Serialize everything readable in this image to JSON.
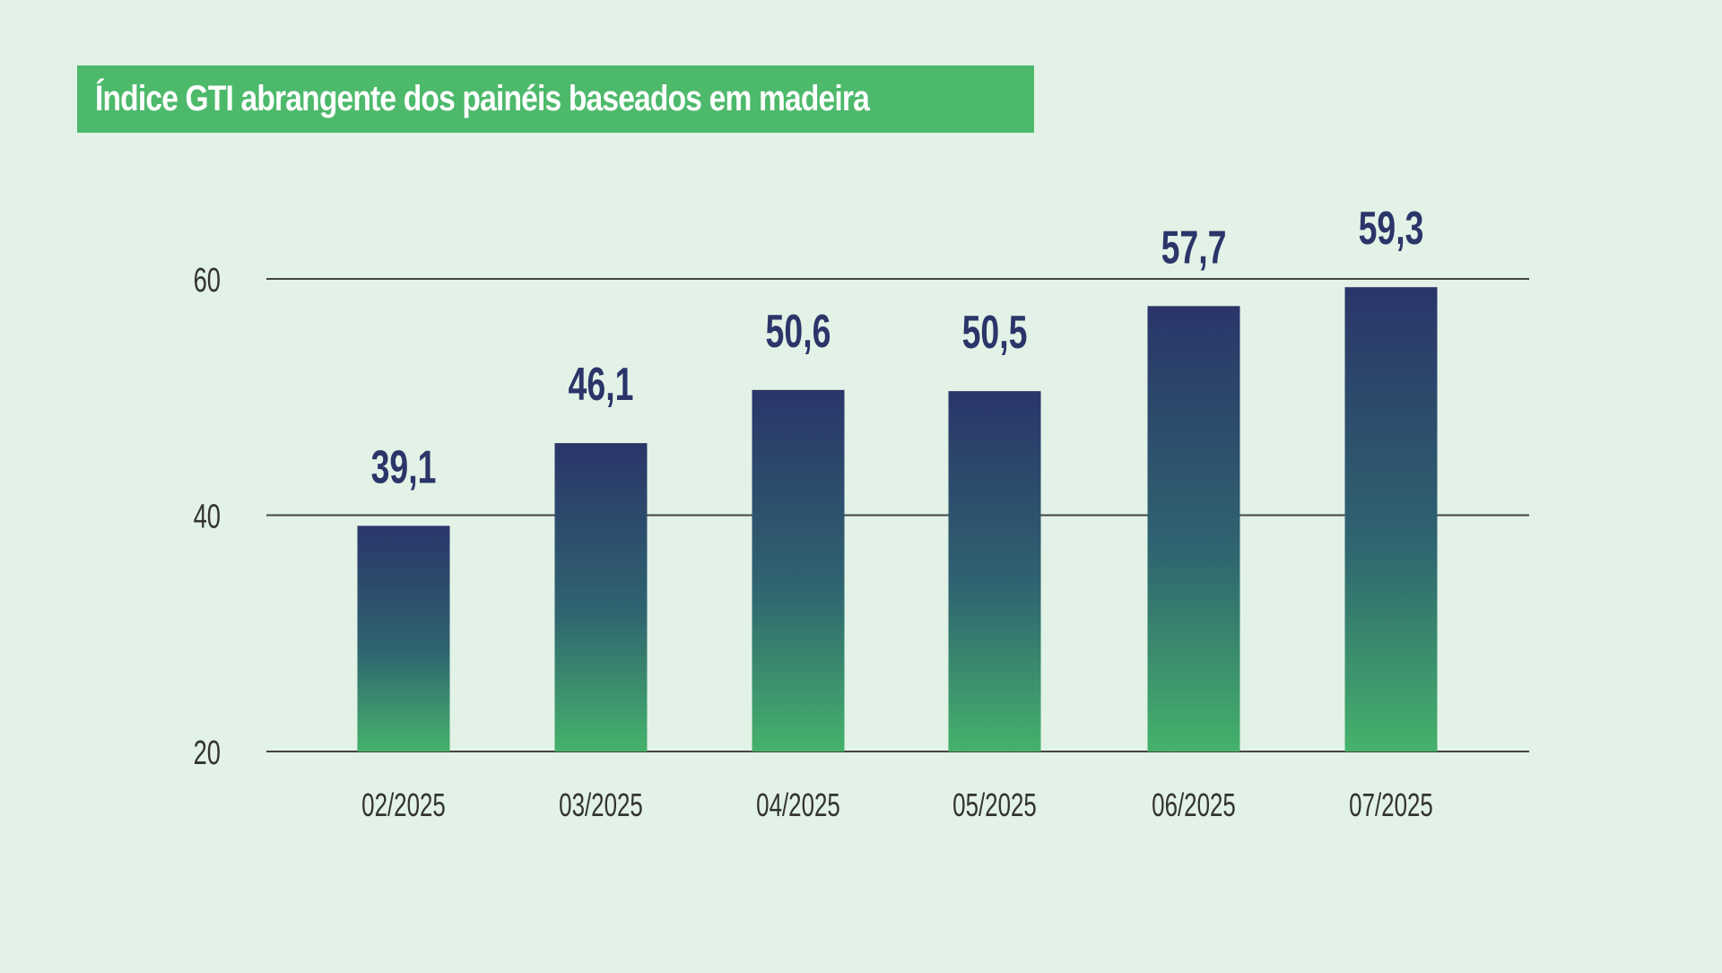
{
  "title": "Índice GTI abrangente dos painéis baseados em madeira",
  "colors": {
    "background": "#e2f2e6",
    "title_box": "#4db96b",
    "title_text": "#ffffff",
    "bar_top": "#2a3569",
    "bar_mid": "#2f6470",
    "bar_bottom": "#45b26b",
    "value_label": "#2a3569",
    "gridline": "#444444",
    "axis_text": "#333333"
  },
  "chart_data": {
    "type": "bar",
    "title": "Índice GTI abrangente dos painéis baseados em madeira",
    "categories": [
      "02/2025",
      "03/2025",
      "04/2025",
      "05/2025",
      "06/2025",
      "07/2025"
    ],
    "values": [
      39.1,
      46.1,
      50.6,
      50.5,
      57.7,
      59.3
    ],
    "value_labels": [
      "39,1",
      "46,1",
      "50,6",
      "50,5",
      "57,7",
      "59,3"
    ],
    "ylim": [
      20,
      60
    ],
    "yticks": [
      20,
      40,
      60
    ],
    "ytick_labels": [
      "20",
      "40",
      "60"
    ],
    "xlabel": "",
    "ylabel": "",
    "grid": true,
    "legend": "none"
  }
}
